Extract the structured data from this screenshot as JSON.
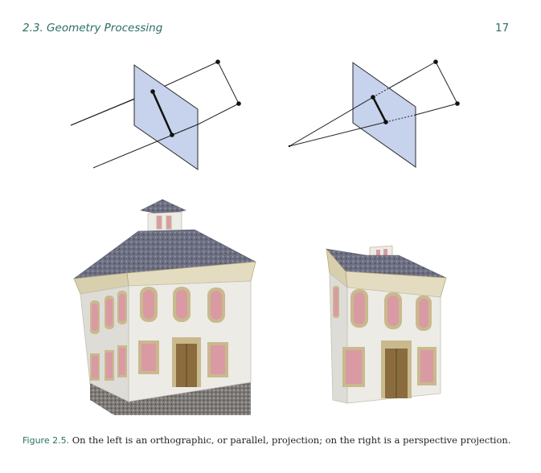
{
  "header": {
    "section_title": "2.3. Geometry Processing",
    "page_number": "17"
  },
  "figure": {
    "label": "Figure 2.5.",
    "caption": "On the left is an orthographic, or parallel, projection; on the right is a perspective projection.",
    "colors": {
      "projection_plane": "#c7d3ec",
      "wall": "#ecebe6",
      "window_glass": "#d99aa4",
      "trim": "#c9b98d",
      "door": "#8a6c3e",
      "roof": "#6d6f82",
      "ground": "#7d7a78"
    }
  }
}
